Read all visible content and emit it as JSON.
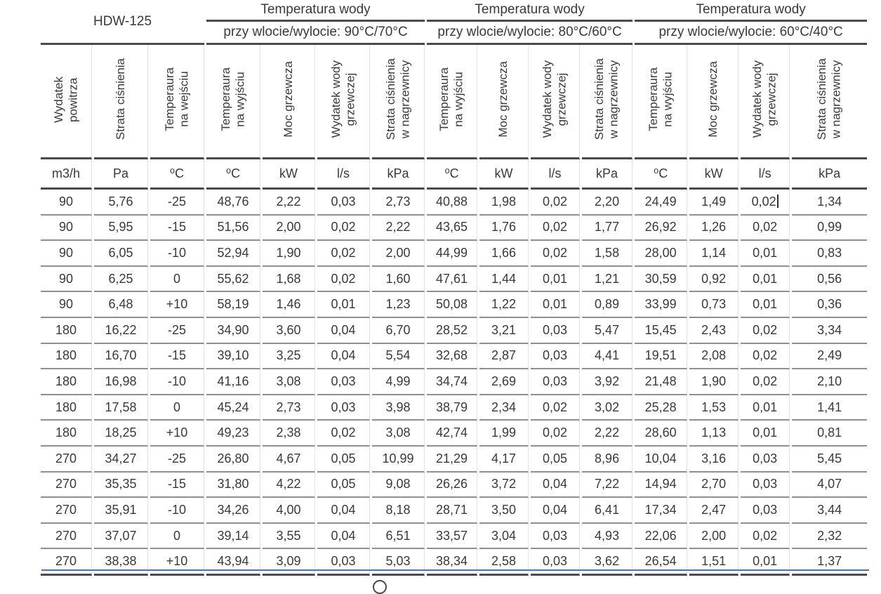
{
  "model": "HDW-125",
  "groups": [
    {
      "title": "Temperatura wody",
      "subtitle": "przy wlocie/wylocie: 90°C/70°C"
    },
    {
      "title": "Temperatura wody",
      "subtitle": "przy wlocie/wylocie: 80°C/60°C"
    },
    {
      "title": "Temperatura wody",
      "subtitle": "przy wlocie/wylocie: 60°C/40°C"
    }
  ],
  "columns": [
    {
      "label": [
        "Wydatek",
        "powitrza"
      ],
      "unit": "m3/h"
    },
    {
      "label": [
        "Strata ciśnienia"
      ],
      "unit": "Pa"
    },
    {
      "label": [
        "Temperaura",
        "na wejściu"
      ],
      "unit": "⁰C"
    },
    {
      "label": [
        "Temperaura",
        "na wyjściu"
      ],
      "unit": "⁰C"
    },
    {
      "label": [
        "Moc grzewcza"
      ],
      "unit": "kW"
    },
    {
      "label": [
        "Wydatek wody",
        "grzewczej"
      ],
      "unit": "l/s"
    },
    {
      "label": [
        "Strata ciśnienia",
        "w nagrzewnicy"
      ],
      "unit": "kPa"
    },
    {
      "label": [
        "Temperaura",
        "na wyjściu"
      ],
      "unit": "⁰C"
    },
    {
      "label": [
        "Moc grzewcza"
      ],
      "unit": "kW"
    },
    {
      "label": [
        "Wydatek wody",
        "grzewczej"
      ],
      "unit": "l/s"
    },
    {
      "label": [
        "Strata ciśnienia",
        "w nagrzewnicy"
      ],
      "unit": "kPa"
    },
    {
      "label": [
        "Temperaura",
        "na wyjściu"
      ],
      "unit": "⁰C"
    },
    {
      "label": [
        "Moc grzewcza"
      ],
      "unit": "kW"
    },
    {
      "label": [
        "Wydatek wody",
        "grzewczej"
      ],
      "unit": "l/s"
    },
    {
      "label": [
        "Strata ciśnienia",
        "w nagrzewnicy"
      ],
      "unit": "kPa"
    }
  ],
  "rows": [
    [
      "90",
      "5,76",
      "-25",
      "48,76",
      "2,22",
      "0,03",
      "2,73",
      "40,88",
      "1,98",
      "0,02",
      "2,20",
      "24,49",
      "1,49",
      "0,02",
      "1,34"
    ],
    [
      "90",
      "5,95",
      "-15",
      "51,56",
      "2,00",
      "0,02",
      "2,22",
      "43,65",
      "1,76",
      "0,02",
      "1,77",
      "26,92",
      "1,26",
      "0,02",
      "0,99"
    ],
    [
      "90",
      "6,05",
      "-10",
      "52,94",
      "1,90",
      "0,02",
      "2,00",
      "44,99",
      "1,66",
      "0,02",
      "1,58",
      "28,00",
      "1,14",
      "0,01",
      "0,83"
    ],
    [
      "90",
      "6,25",
      "0",
      "55,62",
      "1,68",
      "0,02",
      "1,60",
      "47,61",
      "1,44",
      "0,01",
      "1,21",
      "30,59",
      "0,92",
      "0,01",
      "0,56"
    ],
    [
      "90",
      "6,48",
      "+10",
      "58,19",
      "1,46",
      "0,01",
      "1,23",
      "50,08",
      "1,22",
      "0,01",
      "0,89",
      "33,99",
      "0,73",
      "0,01",
      "0,36"
    ],
    [
      "180",
      "16,22",
      "-25",
      "34,90",
      "3,60",
      "0,04",
      "6,70",
      "28,52",
      "3,21",
      "0,03",
      "5,47",
      "15,45",
      "2,43",
      "0,02",
      "3,34"
    ],
    [
      "180",
      "16,70",
      "-15",
      "39,10",
      "3,25",
      "0,04",
      "5,54",
      "32,68",
      "2,87",
      "0,03",
      "4,41",
      "19,51",
      "2,08",
      "0,02",
      "2,49"
    ],
    [
      "180",
      "16,98",
      "-10",
      "41,16",
      "3,08",
      "0,03",
      "4,99",
      "34,74",
      "2,69",
      "0,03",
      "3,92",
      "21,48",
      "1,90",
      "0,02",
      "2,10"
    ],
    [
      "180",
      "17,58",
      "0",
      "45,24",
      "2,73",
      "0,03",
      "3,98",
      "38,79",
      "2,34",
      "0,02",
      "3,02",
      "25,28",
      "1,53",
      "0,01",
      "1,41"
    ],
    [
      "180",
      "18,25",
      "+10",
      "49,23",
      "2,38",
      "0,02",
      "3,08",
      "42,74",
      "1,99",
      "0,02",
      "2,22",
      "28,60",
      "1,13",
      "0,01",
      "0,81"
    ],
    [
      "270",
      "34,27",
      "-25",
      "26,80",
      "4,67",
      "0,05",
      "10,99",
      "21,29",
      "4,17",
      "0,05",
      "8,96",
      "10,04",
      "3,16",
      "0,03",
      "5,45"
    ],
    [
      "270",
      "35,35",
      "-15",
      "31,80",
      "4,22",
      "0,05",
      "9,08",
      "26,26",
      "3,72",
      "0,04",
      "7,22",
      "14,94",
      "2,70",
      "0,03",
      "4,07"
    ],
    [
      "270",
      "35,91",
      "-10",
      "34,26",
      "4,00",
      "0,04",
      "8,18",
      "28,71",
      "3,50",
      "0,04",
      "6,41",
      "17,34",
      "2,47",
      "0,03",
      "3,44"
    ],
    [
      "270",
      "37,07",
      "0",
      "39,14",
      "3,55",
      "0,04",
      "6,51",
      "33,57",
      "3,04",
      "0,03",
      "4,93",
      "22,06",
      "2,00",
      "0,02",
      "2,32"
    ],
    [
      "270",
      "38,38",
      "+10",
      "43,94",
      "3,09",
      "0,03",
      "5,03",
      "38,34",
      "2,58",
      "0,03",
      "3,62",
      "26,54",
      "1,51",
      "0,01",
      "1,37"
    ]
  ],
  "cursor": {
    "row": 0,
    "col": 13
  },
  "colors": {
    "text": "#3a3a3a",
    "rule_dark": "#4a4a4a",
    "rule_gray": "#8f8f8f",
    "rule_faint": "#e4e4e4",
    "selection_line": "#4579b2"
  }
}
